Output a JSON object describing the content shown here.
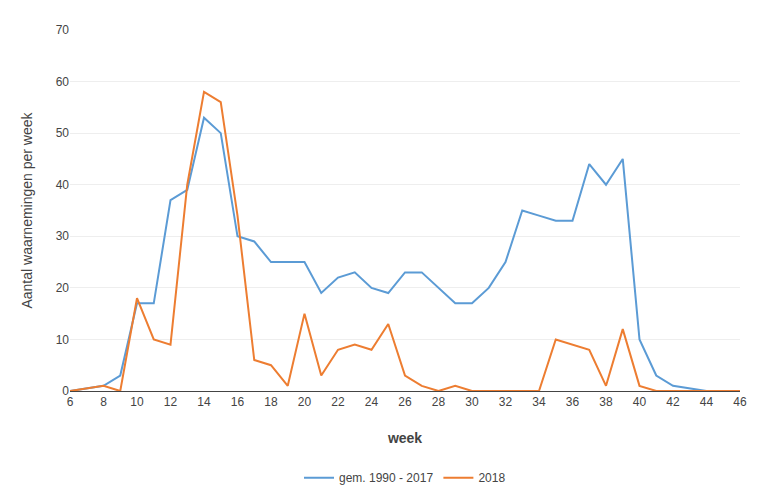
{
  "chart_data": {
    "type": "line",
    "xlabel": "week",
    "ylabel": "Aantal waarnemingen per week",
    "x": [
      6,
      7,
      8,
      9,
      10,
      11,
      12,
      13,
      14,
      15,
      16,
      17,
      18,
      19,
      20,
      21,
      22,
      23,
      24,
      25,
      26,
      27,
      28,
      29,
      30,
      31,
      32,
      33,
      34,
      35,
      36,
      37,
      38,
      39,
      40,
      41,
      42,
      43,
      44,
      45,
      46
    ],
    "series": [
      {
        "name": "gem. 1990 - 2017",
        "color": "#5B9BD5",
        "values": [
          0,
          0.5,
          1,
          3,
          17,
          17,
          37,
          39,
          53,
          50,
          30,
          29,
          25,
          25,
          25,
          19,
          22,
          23,
          20,
          19,
          23,
          23,
          20,
          17,
          17,
          20,
          25,
          35,
          34,
          33,
          33,
          44,
          40,
          45,
          10,
          3,
          1,
          0.5,
          0,
          0,
          0
        ]
      },
      {
        "name": "2018",
        "color": "#ED7D31",
        "values": [
          0,
          0.5,
          1,
          0,
          18,
          10,
          9,
          40,
          58,
          56,
          34,
          6,
          5,
          1,
          15,
          3,
          8,
          9,
          8,
          13,
          3,
          1,
          0,
          1,
          0,
          0,
          0,
          0,
          0,
          10,
          9,
          8,
          1,
          12,
          1,
          0,
          0,
          0,
          0,
          0,
          0
        ]
      }
    ],
    "xlim": [
      6,
      46
    ],
    "xticks": [
      6,
      8,
      10,
      12,
      14,
      16,
      18,
      20,
      22,
      24,
      26,
      28,
      30,
      32,
      34,
      36,
      38,
      40,
      42,
      44,
      46
    ],
    "ylim": [
      0,
      70
    ],
    "yticks": [
      0,
      10,
      20,
      30,
      40,
      50,
      60,
      70
    ],
    "grid": true,
    "legend": "bottom"
  }
}
